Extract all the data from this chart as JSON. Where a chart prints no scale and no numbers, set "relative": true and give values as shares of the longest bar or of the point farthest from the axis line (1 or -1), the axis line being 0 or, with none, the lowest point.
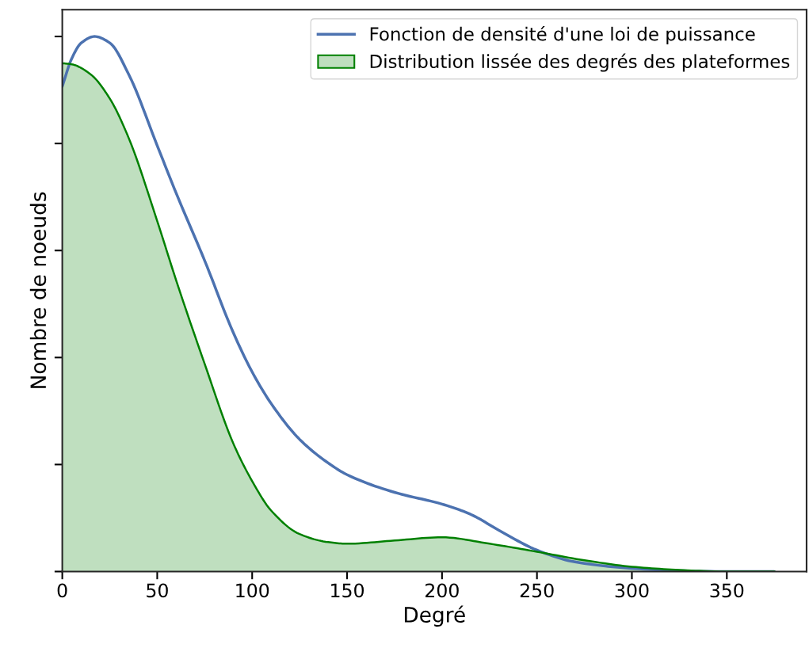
{
  "chart_data": {
    "type": "line",
    "relative": true,
    "xlabel": "Degré",
    "ylabel": "Nombre de noeuds",
    "xlim": [
      0,
      392
    ],
    "xticks": [
      0,
      50,
      100,
      150,
      200,
      250,
      300,
      350
    ],
    "grid": false,
    "legend": "top right",
    "tick_labels": "x",
    "series": [
      {
        "name": "Fonction de densité d'une loi de puissance",
        "color": "#4c72b0",
        "x": [
          0,
          5,
          10,
          17,
          25,
          35,
          50,
          60,
          75,
          90,
          100,
          110,
          125,
          140,
          150,
          175,
          200,
          215,
          230,
          250,
          270,
          300,
          325,
          350,
          375
        ],
        "values": [
          0.907,
          0.959,
          0.988,
          1,
          0.988,
          0.929,
          0.796,
          0.707,
          0.581,
          0.447,
          0.373,
          0.314,
          0.247,
          0.203,
          0.181,
          0.148,
          0.126,
          0.107,
          0.077,
          0.04,
          0.018,
          0.006,
          0.0015,
          0,
          0
        ]
      },
      {
        "name": "Distribution lissée des degrés des plateformes",
        "type": "area",
        "color": "#008000",
        "x": [
          0,
          5,
          15,
          25,
          35,
          50,
          60,
          75,
          90,
          100,
          110,
          125,
          140,
          150,
          175,
          200,
          225,
          250,
          275,
          300,
          325,
          350,
          375
        ],
        "values": [
          0.95,
          0.948,
          0.929,
          0.884,
          0.81,
          0.655,
          0.544,
          0.388,
          0.24,
          0.169,
          0.114,
          0.07,
          0.055,
          0.052,
          0.058,
          0.064,
          0.052,
          0.037,
          0.021,
          0.009,
          0.003,
          0,
          0
        ]
      }
    ]
  }
}
